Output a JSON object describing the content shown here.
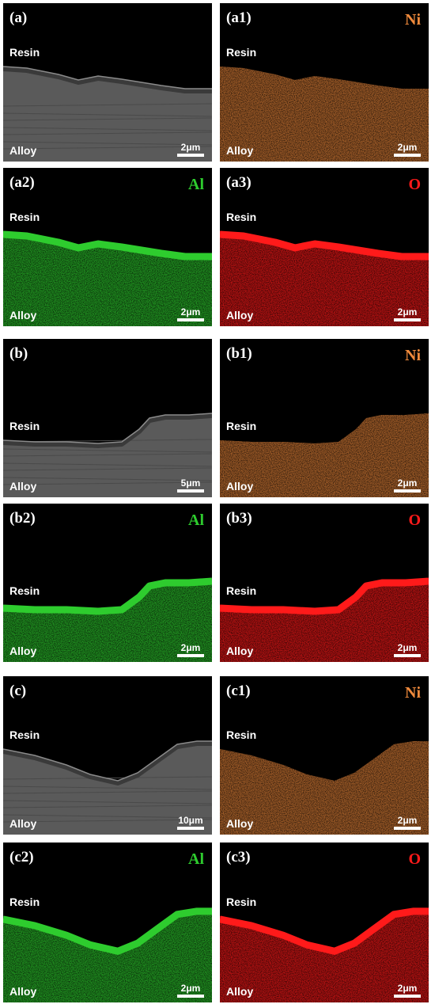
{
  "common": {
    "resin_label": "Resin",
    "alloy_label": "Alloy"
  },
  "colors": {
    "ni": "#f08a3c",
    "al": "#2ecc2e",
    "o": "#ff1a1a",
    "sem": "#5a5a5a"
  },
  "panels": [
    {
      "label": "(a)",
      "element": "",
      "scale": "2μm",
      "type": "sem"
    },
    {
      "label": "(a1)",
      "element": "Ni",
      "scale": "2μm",
      "type": "ni"
    },
    {
      "label": "(a2)",
      "element": "Al",
      "scale": "2μm",
      "type": "al"
    },
    {
      "label": "(a3)",
      "element": "O",
      "scale": "2μm",
      "type": "o"
    },
    {
      "label": "(b)",
      "element": "",
      "scale": "5μm",
      "type": "sem"
    },
    {
      "label": "(b1)",
      "element": "Ni",
      "scale": "2μm",
      "type": "ni"
    },
    {
      "label": "(b2)",
      "element": "Al",
      "scale": "2μm",
      "type": "al"
    },
    {
      "label": "(b3)",
      "element": "O",
      "scale": "2μm",
      "type": "o"
    },
    {
      "label": "(c)",
      "element": "",
      "scale": "10μm",
      "type": "sem"
    },
    {
      "label": "(c1)",
      "element": "Ni",
      "scale": "2μm",
      "type": "ni"
    },
    {
      "label": "(c2)",
      "element": "Al",
      "scale": "2μm",
      "type": "al"
    },
    {
      "label": "(c3)",
      "element": "O",
      "scale": "2μm",
      "type": "o"
    }
  ]
}
